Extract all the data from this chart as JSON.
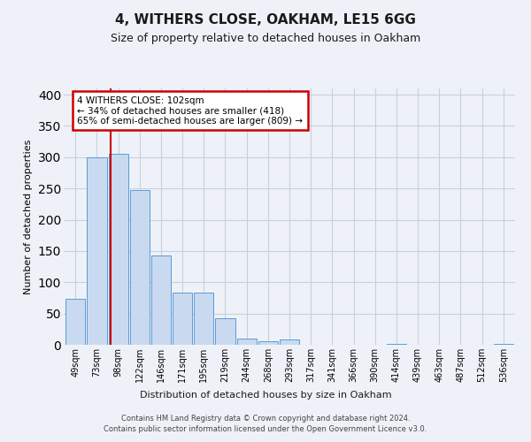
{
  "title": "4, WITHERS CLOSE, OAKHAM, LE15 6GG",
  "subtitle": "Size of property relative to detached houses in Oakham",
  "xlabel": "Distribution of detached houses by size in Oakham",
  "ylabel": "Number of detached properties",
  "bin_labels": [
    "49sqm",
    "73sqm",
    "98sqm",
    "122sqm",
    "146sqm",
    "171sqm",
    "195sqm",
    "219sqm",
    "244sqm",
    "268sqm",
    "293sqm",
    "317sqm",
    "341sqm",
    "366sqm",
    "390sqm",
    "414sqm",
    "439sqm",
    "463sqm",
    "487sqm",
    "512sqm",
    "536sqm"
  ],
  "bar_heights": [
    73,
    300,
    305,
    248,
    143,
    83,
    83,
    43,
    10,
    5,
    8,
    0,
    0,
    0,
    0,
    2,
    0,
    0,
    0,
    0,
    2
  ],
  "bar_color": "#c9daf0",
  "bar_edge_color": "#5b9bd5",
  "vline_position": 1.65,
  "vline_color": "#cc0000",
  "annotation_text": "4 WITHERS CLOSE: 102sqm\n← 34% of detached houses are smaller (418)\n65% of semi-detached houses are larger (809) →",
  "annotation_box_color": "#ffffff",
  "annotation_box_edge": "#cc0000",
  "ylim": [
    0,
    410
  ],
  "yticks": [
    0,
    50,
    100,
    150,
    200,
    250,
    300,
    350,
    400
  ],
  "grid_color": "#c8d0e0",
  "footnote": "Contains HM Land Registry data © Crown copyright and database right 2024.\nContains public sector information licensed under the Open Government Licence v3.0.",
  "bg_color": "#eef2f8",
  "plot_bg_color": "#eef2f8",
  "title_fontsize": 11,
  "subtitle_fontsize": 9
}
